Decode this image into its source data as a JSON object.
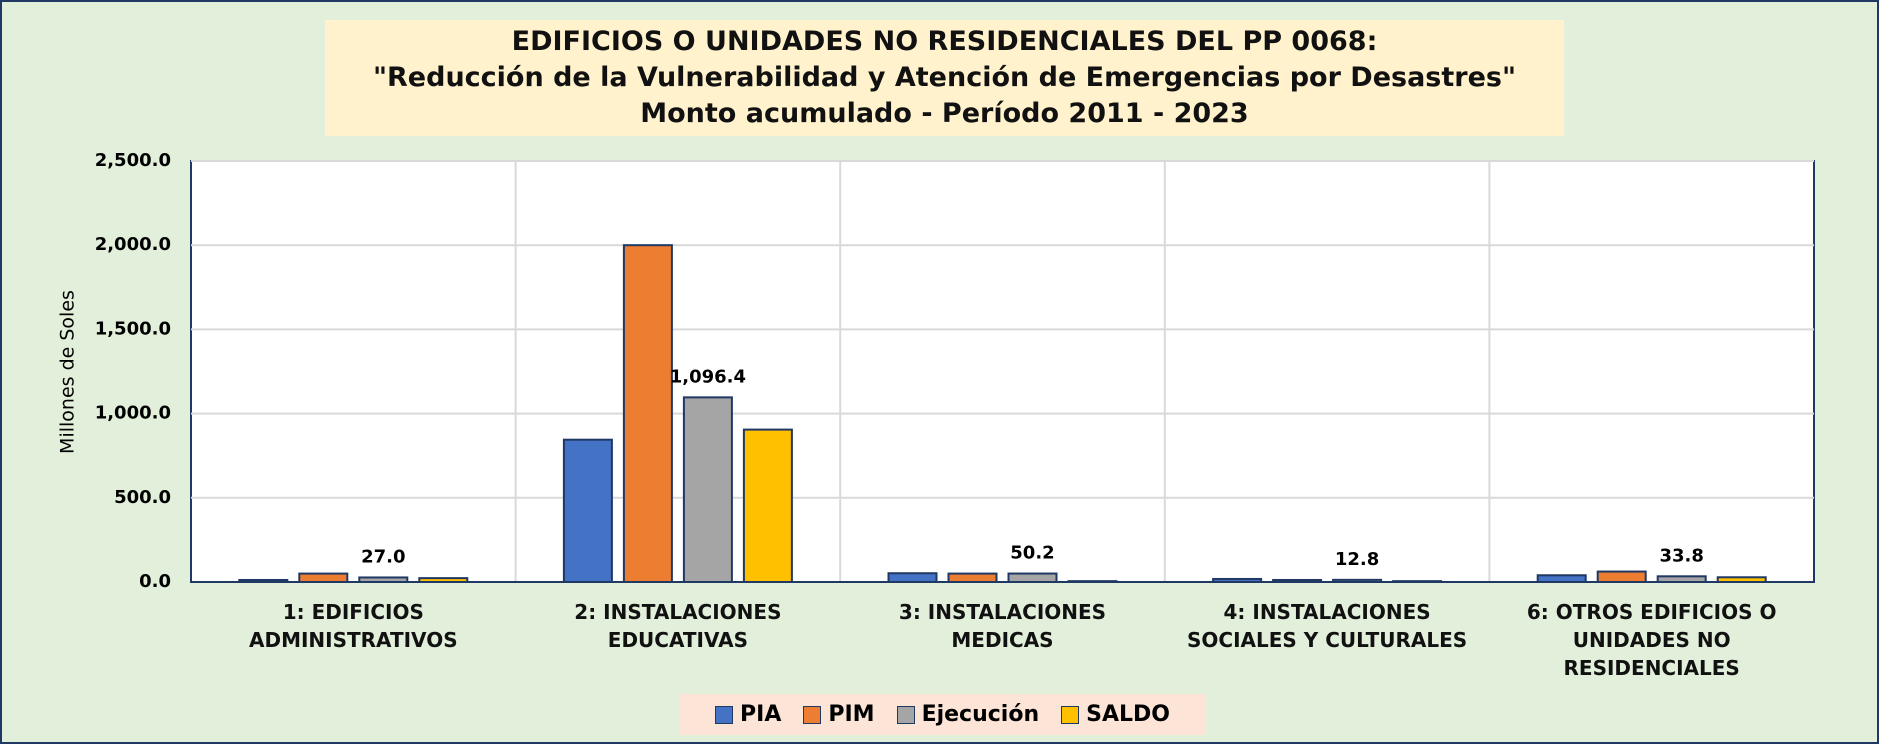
{
  "chart_data": {
    "type": "bar",
    "title": [
      "EDIFICIOS O UNIDADES NO RESIDENCIALES  DEL PP 0068:",
      "\"Reducción de la Vulnerabilidad y Atención de Emergencias por Desastres\"",
      "Monto acumulado - Período 2011 - 2023"
    ],
    "y_label": "Millones de Soles",
    "categories": [
      "1: EDIFICIOS ADMINISTRATIVOS",
      "2: INSTALACIONES EDUCATIVAS",
      "3: INSTALACIONES MEDICAS",
      "4: INSTALACIONES SOCIALES Y CULTURALES",
      "6: OTROS EDIFICIOS O UNIDADES NO RESIDENCIALES"
    ],
    "series": [
      {
        "name": "PIA",
        "color": "#4472c4",
        "values": [
          12,
          845,
          52,
          18,
          40
        ]
      },
      {
        "name": "PIM",
        "color": "#ed7d31",
        "values": [
          50,
          2000,
          50,
          12,
          62
        ]
      },
      {
        "name": "Ejecución",
        "color": "#a5a5a5",
        "values": [
          27.0,
          1096.4,
          50.2,
          12.8,
          33.8
        ],
        "value_labels": [
          "27.0",
          "1,096.4",
          "50.2",
          "12.8",
          "33.8"
        ]
      },
      {
        "name": "SALDO",
        "color": "#ffc000",
        "values": [
          23,
          905,
          5,
          5,
          28
        ]
      }
    ],
    "ylim": [
      0,
      2500
    ],
    "yticks": [
      {
        "value": 0,
        "label": "0.0"
      },
      {
        "value": 500,
        "label": "500.0"
      },
      {
        "value": 1000,
        "label": "1,000.0"
      },
      {
        "value": 1500,
        "label": "1,500.0"
      },
      {
        "value": 2000,
        "label": "2,000.0"
      },
      {
        "value": 2500,
        "label": "2,500.0"
      }
    ],
    "grid": true
  }
}
